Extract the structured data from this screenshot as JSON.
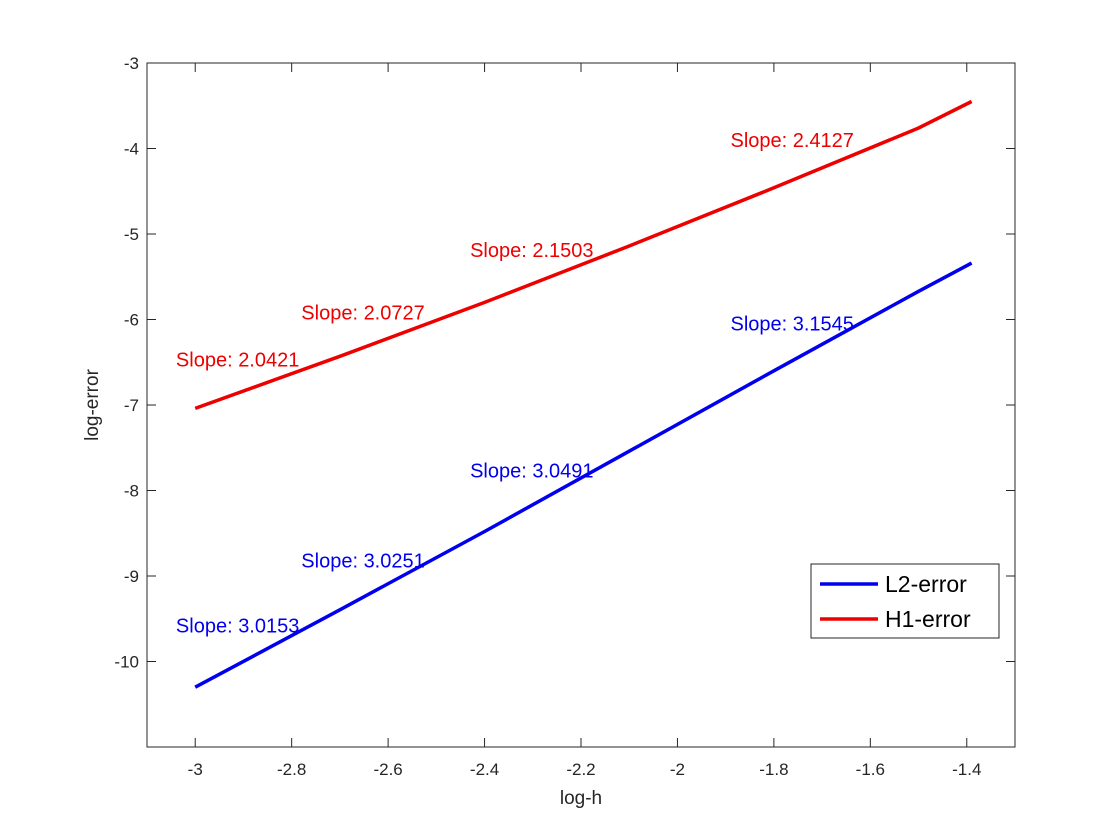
{
  "chart_data": {
    "type": "line",
    "title": "",
    "xlabel": "log-h",
    "ylabel": "log-error",
    "xlim": [
      -3.1,
      -1.3
    ],
    "ylim": [
      -11,
      -3
    ],
    "xticks": [
      -3,
      -2.8,
      -2.6,
      -2.4,
      -2.2,
      -2,
      -1.8,
      -1.6,
      -1.4
    ],
    "xtick_labels": [
      "-3",
      "-2.8",
      "-2.6",
      "-2.4",
      "-2.2",
      "-2",
      "-1.8",
      "-1.6",
      "-1.4"
    ],
    "yticks": [
      -3,
      -4,
      -5,
      -6,
      -7,
      -8,
      -9,
      -10
    ],
    "ytick_labels": [
      "-3",
      "-4",
      "-5",
      "-6",
      "-7",
      "-8",
      "-9",
      "-10"
    ],
    "grid": false,
    "legend_position": "lower-right",
    "series": [
      {
        "name": "L2-error",
        "color": "#0000ee",
        "x": [
          -3.0,
          -2.7,
          -2.4,
          -2.1,
          -1.8,
          -1.5,
          -1.39
        ],
        "y": [
          -10.3,
          -9.395,
          -8.48,
          -7.54,
          -6.6,
          -5.67,
          -5.34
        ]
      },
      {
        "name": "H1-error",
        "color": "#ee0000",
        "x": [
          -3.0,
          -2.7,
          -2.4,
          -2.1,
          -1.8,
          -1.5,
          -1.39
        ],
        "y": [
          -7.04,
          -6.43,
          -5.8,
          -5.14,
          -4.46,
          -3.76,
          -3.45
        ]
      }
    ],
    "annotations": [
      {
        "text": "Slope: 2.0421",
        "x": -3.04,
        "y": -6.55,
        "color": "#ee0000"
      },
      {
        "text": "Slope: 2.0727",
        "x": -2.78,
        "y": -6.0,
        "color": "#ee0000"
      },
      {
        "text": "Slope: 2.1503",
        "x": -2.43,
        "y": -5.27,
        "color": "#ee0000"
      },
      {
        "text": "Slope: 2.4127",
        "x": -1.89,
        "y": -3.98,
        "color": "#ee0000"
      },
      {
        "text": "Slope: 3.0153",
        "x": -3.04,
        "y": -9.66,
        "color": "#0000ee"
      },
      {
        "text": "Slope: 3.0251",
        "x": -2.78,
        "y": -8.9,
        "color": "#0000ee"
      },
      {
        "text": "Slope: 3.0491",
        "x": -2.43,
        "y": -7.85,
        "color": "#0000ee"
      },
      {
        "text": "Slope: 3.1545",
        "x": -1.89,
        "y": -6.13,
        "color": "#0000ee"
      }
    ]
  }
}
